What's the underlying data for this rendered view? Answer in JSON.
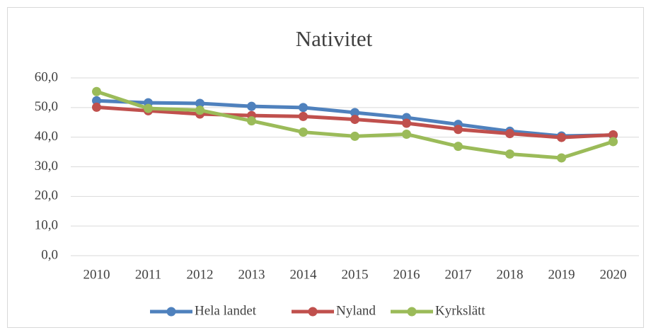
{
  "chart_data": {
    "type": "line",
    "title": "Nativitet",
    "categories": [
      "2010",
      "2011",
      "2012",
      "2013",
      "2014",
      "2015",
      "2016",
      "2017",
      "2018",
      "2019",
      "2020"
    ],
    "series": [
      {
        "name": "Hela landet",
        "color": "#4f81bd",
        "values": [
          52.3,
          51.6,
          51.4,
          50.4,
          50.0,
          48.3,
          46.6,
          44.3,
          42.0,
          40.4,
          40.7
        ]
      },
      {
        "name": "Nyland",
        "color": "#c0504d",
        "values": [
          50.1,
          48.9,
          47.8,
          47.3,
          47.0,
          46.0,
          44.7,
          42.6,
          41.2,
          39.9,
          40.8
        ]
      },
      {
        "name": "Kyrkslätt",
        "color": "#9bbb59",
        "values": [
          55.4,
          49.7,
          49.1,
          45.5,
          41.7,
          40.3,
          41.0,
          36.9,
          34.3,
          33.0,
          38.5
        ]
      }
    ],
    "ylim": [
      0,
      60
    ],
    "yticks": [
      {
        "value": 0,
        "label": "0,0"
      },
      {
        "value": 10,
        "label": "10,0"
      },
      {
        "value": 20,
        "label": "20,0"
      },
      {
        "value": 30,
        "label": "30,0"
      },
      {
        "value": 40,
        "label": "40,0"
      },
      {
        "value": 50,
        "label": "50,0"
      },
      {
        "value": 60,
        "label": "60,0"
      }
    ],
    "grid": true,
    "legend": "bottom"
  }
}
